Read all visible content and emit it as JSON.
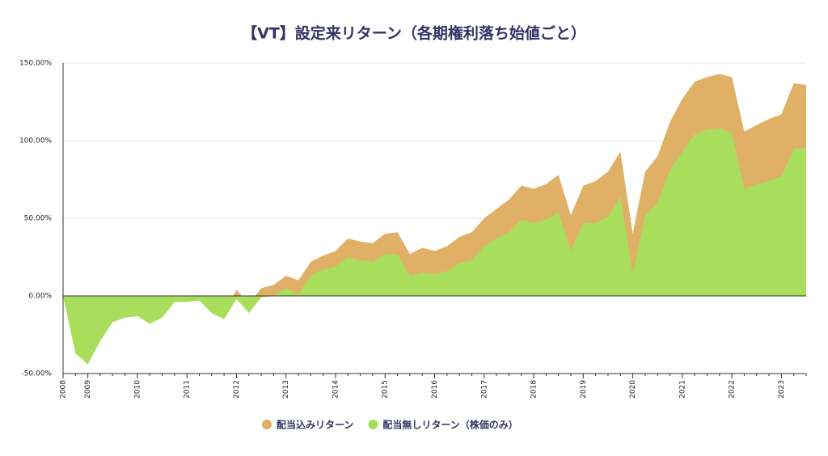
{
  "chart_data": {
    "type": "area",
    "title": "【VT】設定来リターン（各期権利落ち始値ごと）",
    "categories": [
      "2008",
      null,
      "2009",
      null,
      null,
      null,
      "2010",
      null,
      null,
      null,
      "2011",
      null,
      null,
      null,
      "2012",
      null,
      null,
      null,
      "2013",
      null,
      null,
      null,
      "2014",
      null,
      null,
      null,
      "2015",
      null,
      null,
      null,
      "2016",
      null,
      null,
      null,
      "2017",
      null,
      null,
      null,
      "2018",
      null,
      null,
      null,
      "2019",
      null,
      null,
      null,
      "2020",
      null,
      null,
      null,
      "2021",
      null,
      null,
      null,
      "2022",
      null,
      null,
      null,
      "2023",
      null,
      null
    ],
    "series": [
      {
        "name": "配当込みリターン",
        "color": "#e0b066",
        "values": [
          0,
          -36,
          -43,
          -28,
          -16,
          -12,
          -10,
          -16,
          -11,
          -2,
          -1,
          -1,
          -7,
          -10,
          4,
          -5,
          5,
          7,
          13,
          10,
          22,
          26,
          29,
          37,
          35,
          34,
          40,
          41,
          27,
          31,
          29,
          32,
          38,
          41,
          50,
          56,
          62,
          71,
          69,
          72,
          78,
          52,
          71,
          74,
          80,
          93,
          40,
          80,
          90,
          112,
          127,
          138,
          141,
          143,
          141,
          106,
          110,
          114,
          117,
          137,
          136
        ]
      },
      {
        "name": "配当無しリターン（株価のみ）",
        "color": "#a8de5c",
        "values": [
          0,
          -37,
          -44,
          -29,
          -17,
          -14,
          -13,
          -18,
          -14,
          -4,
          -4,
          -3,
          -11,
          -15,
          -2,
          -11,
          -1,
          0,
          5,
          1,
          13,
          17,
          19,
          25,
          23,
          22,
          27,
          27,
          13,
          15,
          14,
          16,
          21,
          23,
          32,
          37,
          41,
          49,
          47,
          49,
          54,
          29,
          47,
          47,
          51,
          64,
          14,
          52,
          60,
          81,
          93,
          104,
          107,
          108,
          105,
          69,
          72,
          74,
          77,
          95,
          95
        ]
      }
    ],
    "ylim": [
      -50,
      150
    ],
    "yticks": [
      {
        "value": -50,
        "label": "-50.00%"
      },
      {
        "value": 0,
        "label": "0.00%"
      },
      {
        "value": 50,
        "label": "50.00%"
      },
      {
        "value": 100,
        "label": "100.00%"
      },
      {
        "value": 150,
        "label": "150.00%"
      }
    ],
    "grid": true,
    "legend": "bottom"
  }
}
